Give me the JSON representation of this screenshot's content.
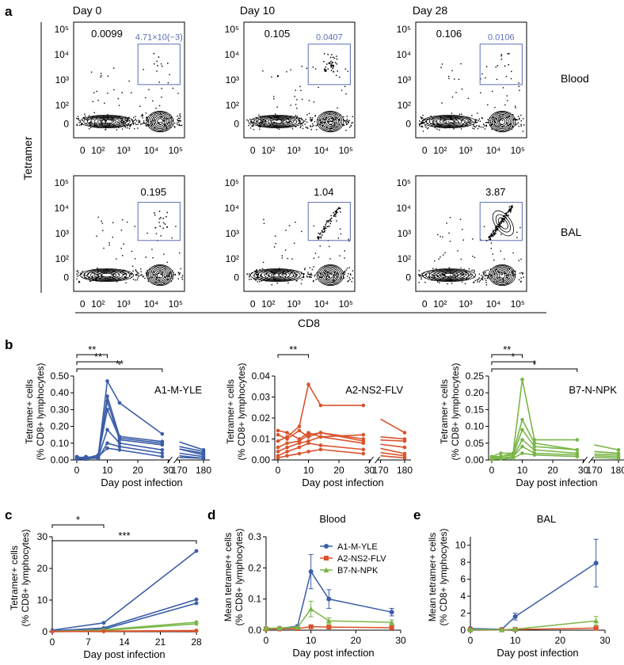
{
  "panels": {
    "a": {
      "letter": "a",
      "columns": [
        "Day 0",
        "Day 10",
        "Day 28"
      ],
      "rows": [
        "Blood",
        "BAL"
      ],
      "y_title": "Tetramer",
      "x_title": "CD8",
      "y_ticks": [
        "10⁵",
        "10⁴",
        "10³",
        "10²",
        "0"
      ],
      "x_ticks": [
        "0",
        "10²",
        "10³",
        "10⁴",
        "10⁵"
      ],
      "gates": [
        {
          "row": 0,
          "col": 0,
          "outer": "0.0099",
          "inner": "4.71×10(−3)"
        },
        {
          "row": 0,
          "col": 1,
          "outer": "0.105",
          "inner": "0.0407"
        },
        {
          "row": 0,
          "col": 2,
          "outer": "0.106",
          "inner": "0.0106"
        },
        {
          "row": 1,
          "col": 0,
          "outer": "0.195",
          "inner": ""
        },
        {
          "row": 1,
          "col": 1,
          "outer": "1.04",
          "inner": ""
        },
        {
          "row": 1,
          "col": 2,
          "outer": "3.87",
          "inner": ""
        }
      ]
    },
    "b": {
      "letter": "b"
    },
    "c": {
      "letter": "c"
    },
    "d": {
      "letter": "d"
    },
    "e": {
      "letter": "e"
    }
  },
  "colors": {
    "A1-M-YLE": "#3b5ea8",
    "A2-NS2-FLV": "#d9532c",
    "B7-N-NPK": "#7ab648",
    "gate": "#5a6fb5"
  },
  "chart_data": [
    {
      "id": "b1",
      "type": "line",
      "label": "A1-M-YLE",
      "color": "#3b5ea8",
      "ylabel": "Tetramer+ cells\n(% CD8+ lymphocytes)",
      "xlabel": "Day post infection",
      "ylim": [
        0,
        0.5
      ],
      "yticks": [
        "0.00",
        "0.10",
        "0.20",
        "0.30",
        "0.40",
        "0.50"
      ],
      "xticks": [
        "0",
        "10",
        "20",
        "30",
        "170",
        "180"
      ],
      "significance": [
        {
          "from": 0,
          "to": 10,
          "label": "**"
        },
        {
          "from": 0,
          "to": 14,
          "label": "**"
        },
        {
          "from": 0,
          "to": 28,
          "label": "**"
        }
      ],
      "series": [
        {
          "x": [
            0,
            3,
            7,
            10,
            14,
            28,
            180
          ],
          "y": [
            0.01,
            0.01,
            0.02,
            0.47,
            0.34,
            0.155,
            0.06
          ]
        },
        {
          "x": [
            0,
            3,
            7,
            10,
            14,
            28,
            180
          ],
          "y": [
            0.01,
            0.02,
            0.01,
            0.38,
            0.14,
            0.11,
            0.05
          ]
        },
        {
          "x": [
            0,
            3,
            7,
            10,
            14,
            28,
            180
          ],
          "y": [
            0.02,
            0.01,
            0.03,
            0.35,
            0.12,
            0.09,
            0.04
          ]
        },
        {
          "x": [
            0,
            3,
            7,
            10,
            14,
            28,
            180
          ],
          "y": [
            0.005,
            0.01,
            0.02,
            0.3,
            0.13,
            0.1,
            0.03
          ]
        },
        {
          "x": [
            0,
            3,
            7,
            10,
            14,
            28,
            180
          ],
          "y": [
            0.01,
            0.005,
            0.015,
            0.18,
            0.1,
            0.06,
            0.02
          ]
        },
        {
          "x": [
            0,
            3,
            7,
            10,
            14,
            28,
            180
          ],
          "y": [
            0.005,
            0.01,
            0.01,
            0.1,
            0.08,
            0.04,
            0.01
          ]
        },
        {
          "x": [
            0,
            3,
            7,
            10,
            14,
            28,
            180
          ],
          "y": [
            0.01,
            0.01,
            0.02,
            0.07,
            0.06,
            0.02,
            0.01
          ]
        }
      ]
    },
    {
      "id": "b2",
      "type": "line",
      "label": "A2-NS2-FLV",
      "color": "#d9532c",
      "ylabel": "Tetramer+ cells\n(% CD8+ lymphocytes)",
      "xlabel": "Day post infection",
      "ylim": [
        0,
        0.04
      ],
      "yticks": [
        "0.00",
        "0.01",
        "0.02",
        "0.03",
        "0.04"
      ],
      "xticks": [
        "0",
        "10",
        "20",
        "30",
        "170",
        "180"
      ],
      "significance": [
        {
          "from": 0,
          "to": 10,
          "label": "**"
        }
      ],
      "series": [
        {
          "x": [
            0,
            3,
            7,
            10,
            14,
            28,
            180
          ],
          "y": [
            0.009,
            0.011,
            0.016,
            0.036,
            0.026,
            0.026,
            0.013
          ]
        },
        {
          "x": [
            0,
            3,
            7,
            10,
            14,
            28,
            180
          ],
          "y": [
            0.014,
            0.013,
            0.01,
            0.013,
            0.011,
            0.012,
            0.01
          ]
        },
        {
          "x": [
            0,
            3,
            7,
            10,
            14,
            28,
            180
          ],
          "y": [
            0.012,
            0.01,
            0.014,
            0.011,
            0.013,
            0.01,
            0.009
          ]
        },
        {
          "x": [
            0,
            3,
            7,
            10,
            14,
            28,
            180
          ],
          "y": [
            0.006,
            0.008,
            0.009,
            0.012,
            0.013,
            0.009,
            0.006
          ]
        },
        {
          "x": [
            0,
            3,
            7,
            10,
            14,
            28,
            180
          ],
          "y": [
            0.004,
            0.006,
            0.008,
            0.009,
            0.011,
            0.008,
            0.003
          ]
        },
        {
          "x": [
            0,
            3,
            7,
            10,
            14,
            28,
            180
          ],
          "y": [
            0.002,
            0.004,
            0.006,
            0.008,
            0.007,
            0.005,
            0.002
          ]
        },
        {
          "x": [
            0,
            3,
            7,
            10,
            14,
            28,
            180
          ],
          "y": [
            0.001,
            0.002,
            0.003,
            0.004,
            0.005,
            0.003,
            0.001
          ]
        }
      ]
    },
    {
      "id": "b3",
      "type": "line",
      "label": "B7-N-NPK",
      "color": "#7ab648",
      "ylabel": "Tetramer+ cells\n(% CD8+ lymphocytes)",
      "xlabel": "Day post infection",
      "ylim": [
        0,
        0.25
      ],
      "yticks": [
        "0.00",
        "0.05",
        "0.10",
        "0.15",
        "0.20",
        "0.25"
      ],
      "xticks": [
        "0",
        "10",
        "20",
        "30",
        "170",
        "180"
      ],
      "significance": [
        {
          "from": 0,
          "to": 10,
          "label": "**"
        },
        {
          "from": 0,
          "to": 14,
          "label": "*"
        },
        {
          "from": 0,
          "to": 28,
          "label": "*"
        }
      ],
      "series": [
        {
          "x": [
            0,
            3,
            7,
            10,
            14,
            28,
            180
          ],
          "y": [
            0.01,
            0.01,
            0.02,
            0.24,
            0.06,
            0.06,
            0.03
          ]
        },
        {
          "x": [
            0,
            3,
            7,
            10,
            14,
            28,
            180
          ],
          "y": [
            0.01,
            0.02,
            0.02,
            0.12,
            0.05,
            0.03,
            0.02
          ]
        },
        {
          "x": [
            0,
            3,
            7,
            10,
            14,
            28,
            180
          ],
          "y": [
            0.005,
            0.01,
            0.015,
            0.09,
            0.04,
            0.03,
            0.02
          ]
        },
        {
          "x": [
            0,
            3,
            7,
            10,
            14,
            28,
            180
          ],
          "y": [
            0.005,
            0.005,
            0.01,
            0.06,
            0.03,
            0.02,
            0.015
          ]
        },
        {
          "x": [
            0,
            3,
            7,
            10,
            14,
            28,
            180
          ],
          "y": [
            0.002,
            0.005,
            0.01,
            0.04,
            0.02,
            0.015,
            0.01
          ]
        },
        {
          "x": [
            0,
            3,
            7,
            10,
            14,
            28,
            180
          ],
          "y": [
            0.002,
            0.003,
            0.005,
            0.02,
            0.015,
            0.01,
            0.005
          ]
        }
      ]
    },
    {
      "id": "c",
      "type": "line",
      "ylabel": "Tetramer+ cells\n(% CD8+ lymphocytes)",
      "xlabel": "Day post infection",
      "ylim": [
        0,
        30
      ],
      "xlim": [
        0,
        28
      ],
      "yticks": [
        "0",
        "10",
        "20",
        "30"
      ],
      "xticks": [
        "0",
        "7",
        "14",
        "21",
        "28"
      ],
      "significance": [
        {
          "from": 0,
          "to": 10,
          "label": "*"
        },
        {
          "from": 0,
          "to": 28,
          "label": "***"
        }
      ],
      "series": [
        {
          "color": "#3b5ea8",
          "x": [
            0,
            10,
            28
          ],
          "y": [
            0.5,
            2.8,
            25.5
          ]
        },
        {
          "color": "#3b5ea8",
          "x": [
            0,
            10,
            28
          ],
          "y": [
            0.3,
            1.2,
            10.2
          ]
        },
        {
          "color": "#3b5ea8",
          "x": [
            0,
            10,
            28
          ],
          "y": [
            0.2,
            0.8,
            9.0
          ]
        },
        {
          "color": "#7ab648",
          "x": [
            0,
            10,
            28
          ],
          "y": [
            0.1,
            0.6,
            3.0
          ]
        },
        {
          "color": "#7ab648",
          "x": [
            0,
            10,
            28
          ],
          "y": [
            0.1,
            0.4,
            2.5
          ]
        },
        {
          "color": "#d9532c",
          "x": [
            0,
            10,
            28
          ],
          "y": [
            0.05,
            0.2,
            0.4
          ]
        },
        {
          "color": "#d9532c",
          "x": [
            0,
            10,
            28
          ],
          "y": [
            0.05,
            0.1,
            0.2
          ]
        }
      ]
    },
    {
      "id": "d",
      "type": "line",
      "title": "Blood",
      "ylabel": "Mean tetramer+ cells\n(% CD8+ lymphocytes)",
      "xlabel": "Day post infection",
      "ylim": [
        0,
        0.3
      ],
      "xlim": [
        0,
        30
      ],
      "yticks": [
        "0.0",
        "0.1",
        "0.2",
        "0.3"
      ],
      "xticks": [
        "0",
        "10",
        "20",
        "30"
      ],
      "legend": "top-right",
      "series": [
        {
          "name": "A1-M-YLE",
          "color": "#3b5ea8",
          "marker": "circle",
          "x": [
            0,
            3,
            7,
            10,
            14,
            28
          ],
          "y": [
            0.005,
            0.006,
            0.012,
            0.188,
            0.1,
            0.058
          ],
          "err": [
            0.002,
            0.002,
            0.004,
            0.055,
            0.03,
            0.012
          ]
        },
        {
          "name": "A2-NS2-FLV",
          "color": "#d9532c",
          "marker": "square",
          "x": [
            0,
            3,
            7,
            10,
            14,
            28
          ],
          "y": [
            0.004,
            0.004,
            0.005,
            0.011,
            0.01,
            0.008
          ],
          "err": [
            0.001,
            0.001,
            0.001,
            0.003,
            0.002,
            0.002
          ]
        },
        {
          "name": "B7-N-NPK",
          "color": "#7ab648",
          "marker": "triangle",
          "x": [
            0,
            3,
            7,
            10,
            14,
            28
          ],
          "y": [
            0.006,
            0.007,
            0.009,
            0.068,
            0.03,
            0.025
          ],
          "err": [
            0.002,
            0.002,
            0.003,
            0.025,
            0.01,
            0.008
          ]
        }
      ]
    },
    {
      "id": "e",
      "type": "line",
      "title": "BAL",
      "ylabel": "Mean tetramer+ cells\n(% CD8+ lymphocytes)",
      "xlabel": "Day post infection",
      "ylim": [
        0,
        11
      ],
      "xlim": [
        0,
        30
      ],
      "yticks": [
        "0",
        "2",
        "4",
        "6",
        "8",
        "10"
      ],
      "xticks": [
        "0",
        "10",
        "20",
        "30"
      ],
      "series": [
        {
          "name": "A1-M-YLE",
          "color": "#3b5ea8",
          "marker": "circle",
          "x": [
            0,
            7,
            10,
            28
          ],
          "y": [
            0.2,
            0.1,
            1.6,
            7.9
          ],
          "err": [
            0.1,
            0.05,
            0.4,
            2.8
          ]
        },
        {
          "name": "A2-NS2-FLV",
          "color": "#d9532c",
          "marker": "square",
          "x": [
            0,
            7,
            10,
            28
          ],
          "y": [
            0.05,
            0.03,
            0.08,
            0.25
          ],
          "err": [
            0.02,
            0.01,
            0.03,
            0.1
          ]
        },
        {
          "name": "B7-N-NPK",
          "color": "#7ab648",
          "marker": "triangle",
          "x": [
            0,
            7,
            10,
            28
          ],
          "y": [
            0.08,
            0.05,
            0.12,
            1.1
          ],
          "err": [
            0.03,
            0.02,
            0.05,
            0.5
          ]
        }
      ]
    }
  ]
}
